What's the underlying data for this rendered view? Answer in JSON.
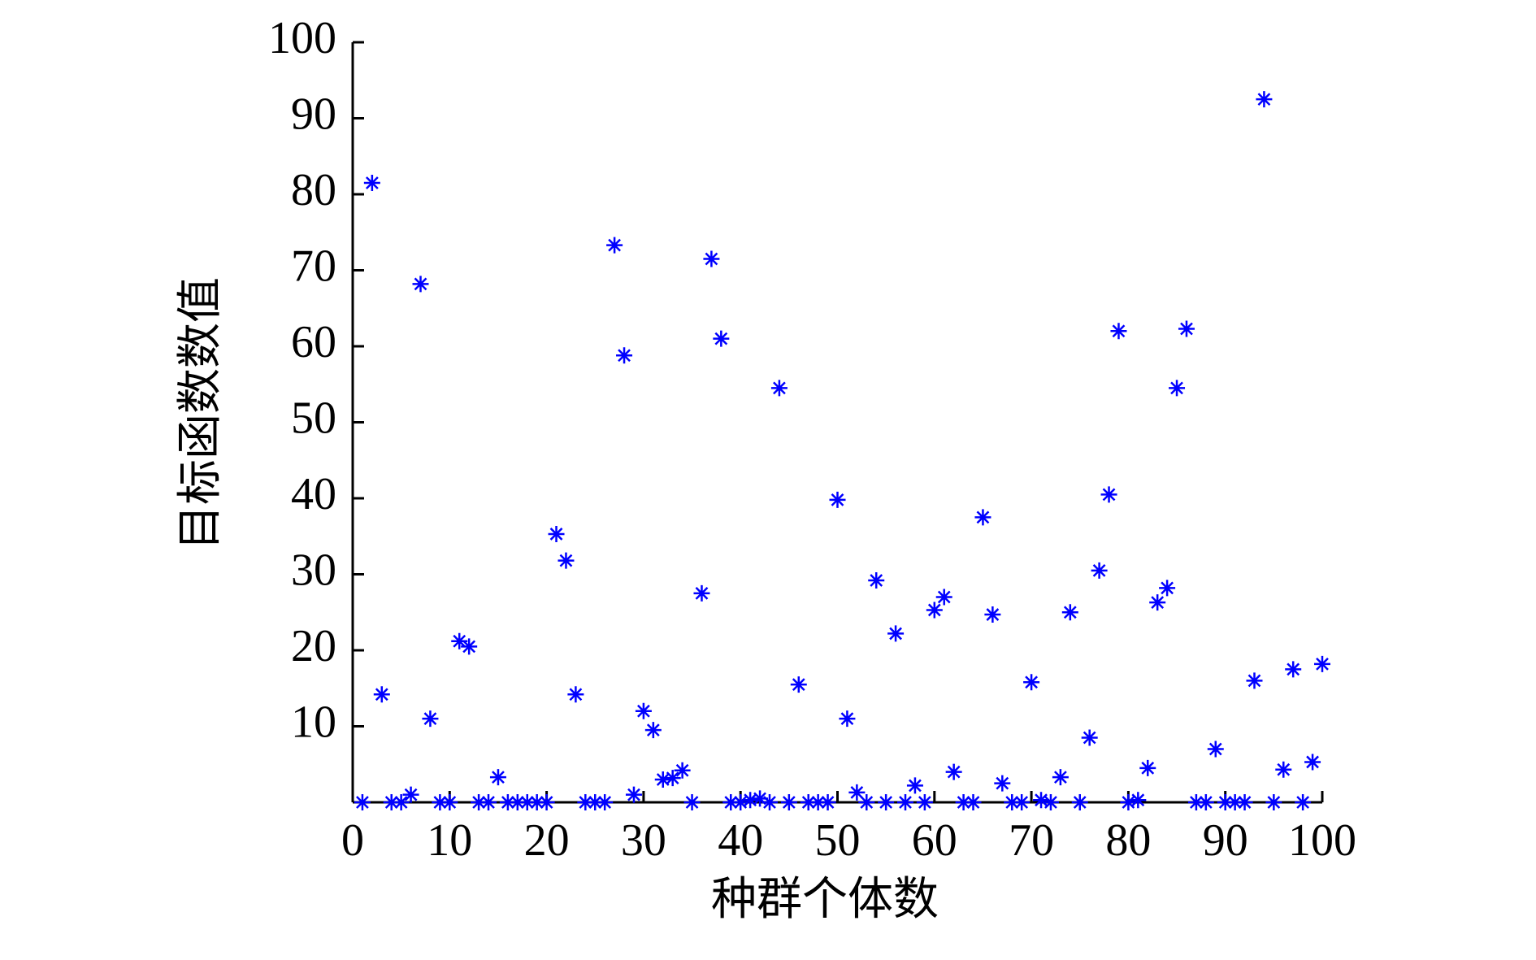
{
  "chart_data": {
    "type": "scatter",
    "xlabel": "种群个体数",
    "ylabel": "目标函数数值",
    "x": [
      1,
      2,
      3,
      4,
      5,
      6,
      7,
      8,
      9,
      10,
      11,
      12,
      13,
      14,
      15,
      16,
      17,
      18,
      19,
      20,
      21,
      22,
      23,
      24,
      25,
      26,
      27,
      28,
      29,
      30,
      31,
      32,
      33,
      34,
      35,
      36,
      37,
      38,
      39,
      40,
      41,
      42,
      43,
      44,
      45,
      46,
      47,
      48,
      49,
      50,
      51,
      52,
      53,
      54,
      55,
      56,
      57,
      58,
      59,
      60,
      61,
      62,
      63,
      64,
      65,
      66,
      67,
      68,
      69,
      70,
      71,
      72,
      73,
      74,
      75,
      76,
      77,
      78,
      79,
      80,
      81,
      82,
      83,
      84,
      85,
      86,
      87,
      88,
      89,
      90,
      91,
      92,
      93,
      94,
      95,
      96,
      97,
      98,
      99,
      100
    ],
    "values": [
      0,
      81.5,
      14.2,
      0,
      0,
      1,
      68.2,
      11,
      0,
      0,
      21.2,
      20.5,
      0,
      0,
      3.3,
      0,
      0,
      0,
      0,
      0,
      35.3,
      31.8,
      14.2,
      0,
      0,
      0,
      73.3,
      58.8,
      1,
      12,
      9.5,
      3,
      3.2,
      4.2,
      0,
      27.5,
      71.5,
      61,
      0,
      0,
      0.3,
      0.5,
      0,
      54.5,
      0,
      15.5,
      0,
      0,
      0,
      39.8,
      11,
      1.3,
      0,
      29.2,
      0,
      22.2,
      0,
      2.2,
      0,
      25.3,
      27,
      4,
      0,
      0,
      37.5,
      24.7,
      2.5,
      0,
      0,
      15.8,
      0.3,
      0,
      3.3,
      25,
      0,
      8.5,
      30.5,
      40.5,
      62,
      0,
      0.3,
      4.5,
      26.3,
      28.2,
      54.5,
      62.3,
      0,
      0,
      7,
      0,
      0,
      0,
      16,
      92.5,
      0,
      4.3,
      17.5,
      0,
      5.3,
      18.2
    ],
    "color": "#0000ff",
    "xlim": [
      0,
      100
    ],
    "xticks": [
      0,
      10,
      20,
      30,
      40,
      50,
      60,
      70,
      80,
      90,
      100
    ],
    "ylim": [
      0,
      100
    ],
    "yticks": [
      10,
      20,
      30,
      40,
      50,
      60,
      70,
      80,
      90,
      100
    ],
    "grid": false
  }
}
